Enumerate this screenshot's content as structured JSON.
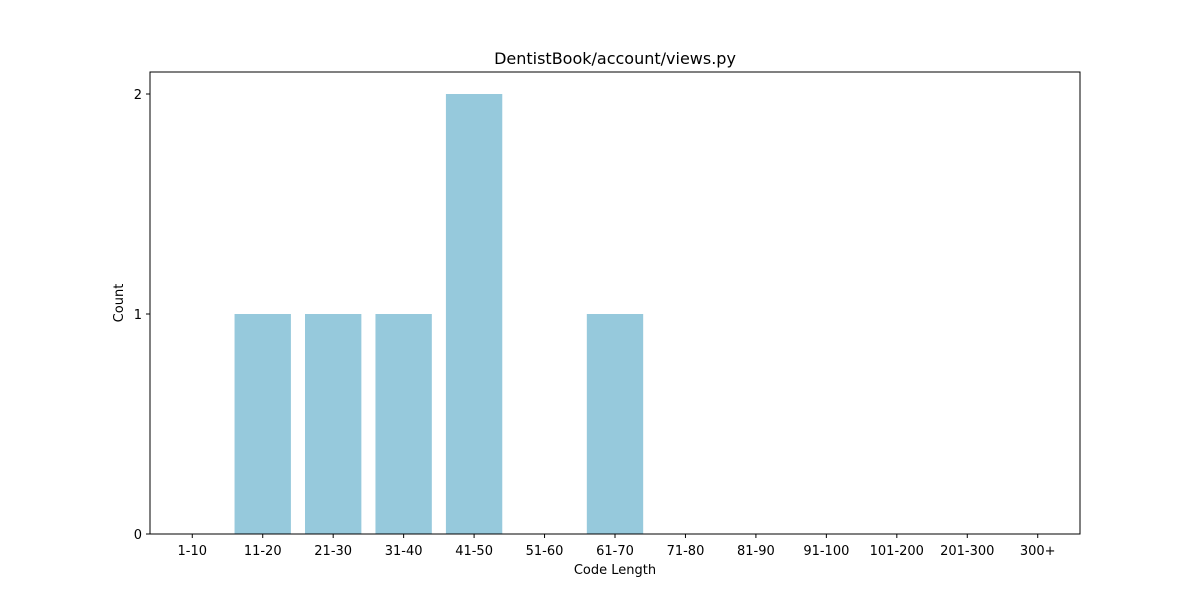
{
  "chart_data": {
    "type": "bar",
    "title": "DentistBook/account/views.py",
    "xlabel": "Code Length",
    "ylabel": "Count",
    "categories": [
      "1-10",
      "11-20",
      "21-30",
      "31-40",
      "41-50",
      "51-60",
      "61-70",
      "71-80",
      "81-90",
      "91-100",
      "101-200",
      "201-300",
      "300+"
    ],
    "values": [
      0,
      1,
      1,
      1,
      2,
      0,
      1,
      0,
      0,
      0,
      0,
      0,
      0
    ],
    "yticks": [
      0,
      1,
      2
    ],
    "ylim": [
      0,
      2.1
    ],
    "grid": false,
    "legend": "none",
    "bar_color": "#96c9dc"
  }
}
